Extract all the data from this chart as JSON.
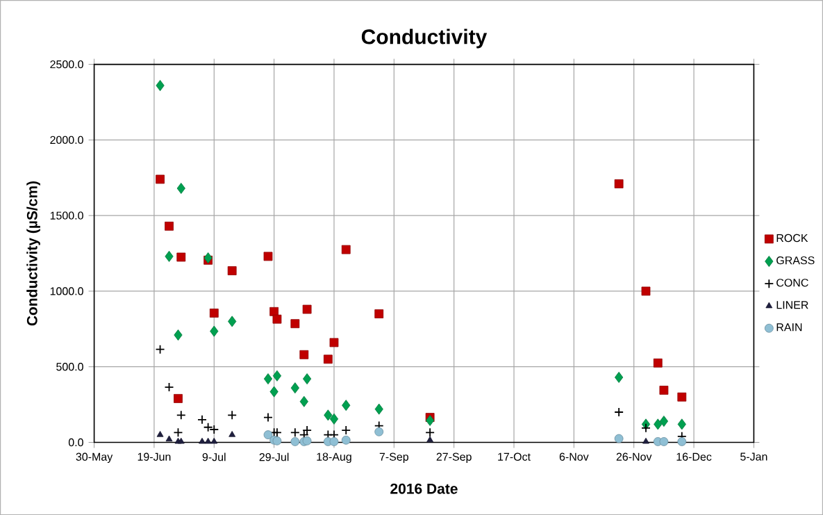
{
  "chart_data": {
    "type": "scatter",
    "title": "Conductivity",
    "xlabel": "2016 Date",
    "ylabel": "Conductivity (µS/cm)",
    "xlim": [
      "2016-05-30",
      "2017-01-05"
    ],
    "xticks": [
      {
        "value": "2016-05-30",
        "label": "30-May"
      },
      {
        "value": "2016-06-19",
        "label": "19-Jun"
      },
      {
        "value": "2016-07-09",
        "label": "9-Jul"
      },
      {
        "value": "2016-07-29",
        "label": "29-Jul"
      },
      {
        "value": "2016-08-18",
        "label": "18-Aug"
      },
      {
        "value": "2016-09-07",
        "label": "7-Sep"
      },
      {
        "value": "2016-09-27",
        "label": "27-Sep"
      },
      {
        "value": "2016-10-17",
        "label": "17-Oct"
      },
      {
        "value": "2016-11-06",
        "label": "6-Nov"
      },
      {
        "value": "2016-11-26",
        "label": "26-Nov"
      },
      {
        "value": "2016-12-16",
        "label": "16-Dec"
      },
      {
        "value": "2017-01-05",
        "label": "5-Jan"
      }
    ],
    "ylim": [
      0,
      2500
    ],
    "yticks": [
      {
        "value": 0,
        "label": "0.0"
      },
      {
        "value": 500,
        "label": "500.0"
      },
      {
        "value": 1000,
        "label": "1000.0"
      },
      {
        "value": 1500,
        "label": "1500.0"
      },
      {
        "value": 2000,
        "label": "2000.0"
      },
      {
        "value": 2500,
        "label": "2500.0"
      }
    ],
    "grid": true,
    "legend": "right",
    "series": [
      {
        "name": "ROCK",
        "color": "#c00000",
        "marker": "square",
        "x": [
          "2016-06-21",
          "2016-06-24",
          "2016-06-27",
          "2016-06-28",
          "2016-07-07",
          "2016-07-09",
          "2016-07-15",
          "2016-07-27",
          "2016-07-29",
          "2016-07-30",
          "2016-08-05",
          "2016-08-08",
          "2016-08-09",
          "2016-08-16",
          "2016-08-18",
          "2016-08-22",
          "2016-09-02",
          "2016-09-19",
          "2016-11-21",
          "2016-11-30",
          "2016-12-04",
          "2016-12-06",
          "2016-12-12"
        ],
        "values": [
          1740,
          1430,
          290,
          1225,
          1205,
          855,
          1135,
          1230,
          865,
          815,
          785,
          580,
          880,
          550,
          660,
          1275,
          850,
          165,
          1710,
          1000,
          525,
          345,
          300
        ]
      },
      {
        "name": "GRASS",
        "color": "#00a050",
        "marker": "diamond",
        "x": [
          "2016-06-21",
          "2016-06-24",
          "2016-06-27",
          "2016-06-28",
          "2016-07-07",
          "2016-07-09",
          "2016-07-15",
          "2016-07-27",
          "2016-07-29",
          "2016-07-30",
          "2016-08-05",
          "2016-08-08",
          "2016-08-09",
          "2016-08-16",
          "2016-08-18",
          "2016-08-22",
          "2016-09-02",
          "2016-09-19",
          "2016-11-21",
          "2016-11-30",
          "2016-12-04",
          "2016-12-06",
          "2016-12-12"
        ],
        "values": [
          2360,
          1230,
          710,
          1680,
          1220,
          735,
          800,
          420,
          335,
          440,
          360,
          270,
          420,
          180,
          155,
          245,
          220,
          145,
          430,
          120,
          120,
          140,
          120
        ]
      },
      {
        "name": "CONC",
        "color": "#000000",
        "marker": "cross",
        "x": [
          "2016-06-21",
          "2016-06-24",
          "2016-06-27",
          "2016-06-28",
          "2016-07-05",
          "2016-07-07",
          "2016-07-09",
          "2016-07-15",
          "2016-07-27",
          "2016-07-29",
          "2016-07-30",
          "2016-08-05",
          "2016-08-08",
          "2016-08-09",
          "2016-08-16",
          "2016-08-18",
          "2016-08-22",
          "2016-09-02",
          "2016-09-19",
          "2016-11-21",
          "2016-11-30",
          "2016-12-12"
        ],
        "values": [
          615,
          365,
          65,
          180,
          150,
          100,
          85,
          180,
          165,
          65,
          65,
          65,
          50,
          80,
          50,
          50,
          80,
          110,
          65,
          200,
          95,
          40
        ]
      },
      {
        "name": "LINER",
        "color": "#1f1f3f",
        "marker": "triangle",
        "x": [
          "2016-06-21",
          "2016-06-24",
          "2016-06-27",
          "2016-06-28",
          "2016-07-05",
          "2016-07-07",
          "2016-07-09",
          "2016-07-15",
          "2016-09-19",
          "2016-11-30"
        ],
        "values": [
          50,
          20,
          5,
          5,
          5,
          5,
          5,
          50,
          15,
          5
        ]
      },
      {
        "name": "RAIN",
        "color": "#8fbfd4",
        "marker": "circle",
        "x": [
          "2016-07-27",
          "2016-07-29",
          "2016-07-30",
          "2016-08-05",
          "2016-08-08",
          "2016-08-09",
          "2016-08-16",
          "2016-08-18",
          "2016-08-22",
          "2016-09-02",
          "2016-11-21",
          "2016-12-04",
          "2016-12-06",
          "2016-12-12"
        ],
        "values": [
          50,
          15,
          10,
          5,
          5,
          10,
          5,
          5,
          15,
          70,
          25,
          5,
          5,
          5
        ]
      }
    ]
  }
}
